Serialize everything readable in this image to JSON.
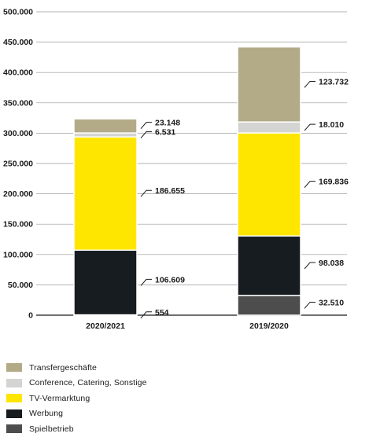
{
  "chart_data": {
    "type": "bar",
    "stacked": true,
    "categories": [
      "2020/2021",
      "2019/2020"
    ],
    "ylim": [
      0,
      500000
    ],
    "yticks": [
      0,
      50000,
      100000,
      150000,
      200000,
      250000,
      300000,
      350000,
      400000,
      450000,
      500000
    ],
    "ytick_labels": [
      "0",
      "50.000",
      "100.000",
      "150.000",
      "200.000",
      "250.000",
      "300.000",
      "350.000",
      "400.000",
      "450.000",
      "500.000"
    ],
    "grid": true,
    "legend_position": "bottom-left",
    "series": [
      {
        "name": "Spielbetrieb",
        "color": "#4d4d4d",
        "values": [
          554,
          32510
        ],
        "labels": [
          "554",
          "32.510"
        ]
      },
      {
        "name": "Werbung",
        "color": "#161c20",
        "values": [
          106609,
          98038
        ],
        "labels": [
          "106.609",
          "98.038"
        ]
      },
      {
        "name": "TV-Vermarktung",
        "color": "#ffe600",
        "values": [
          186655,
          169836
        ],
        "labels": [
          "186.655",
          "169.836"
        ]
      },
      {
        "name": "Conference, Catering, Sonstige",
        "color": "#d4d4d2",
        "values": [
          6531,
          18010
        ],
        "labels": [
          "6.531",
          "18.010"
        ]
      },
      {
        "name": "Transfergeschäfte",
        "color": "#b3ab88",
        "values": [
          23148,
          123732
        ],
        "labels": [
          "23.148",
          "123.732"
        ]
      }
    ]
  },
  "legend": {
    "items": [
      {
        "label": "Transfergeschäfte",
        "color": "#b3ab88"
      },
      {
        "label": "Conference, Catering, Sonstige",
        "color": "#d4d4d2"
      },
      {
        "label": "TV-Vermarktung",
        "color": "#ffe600"
      },
      {
        "label": "Werbung",
        "color": "#161c20"
      },
      {
        "label": "Spielbetrieb",
        "color": "#4d4d4d"
      }
    ]
  }
}
